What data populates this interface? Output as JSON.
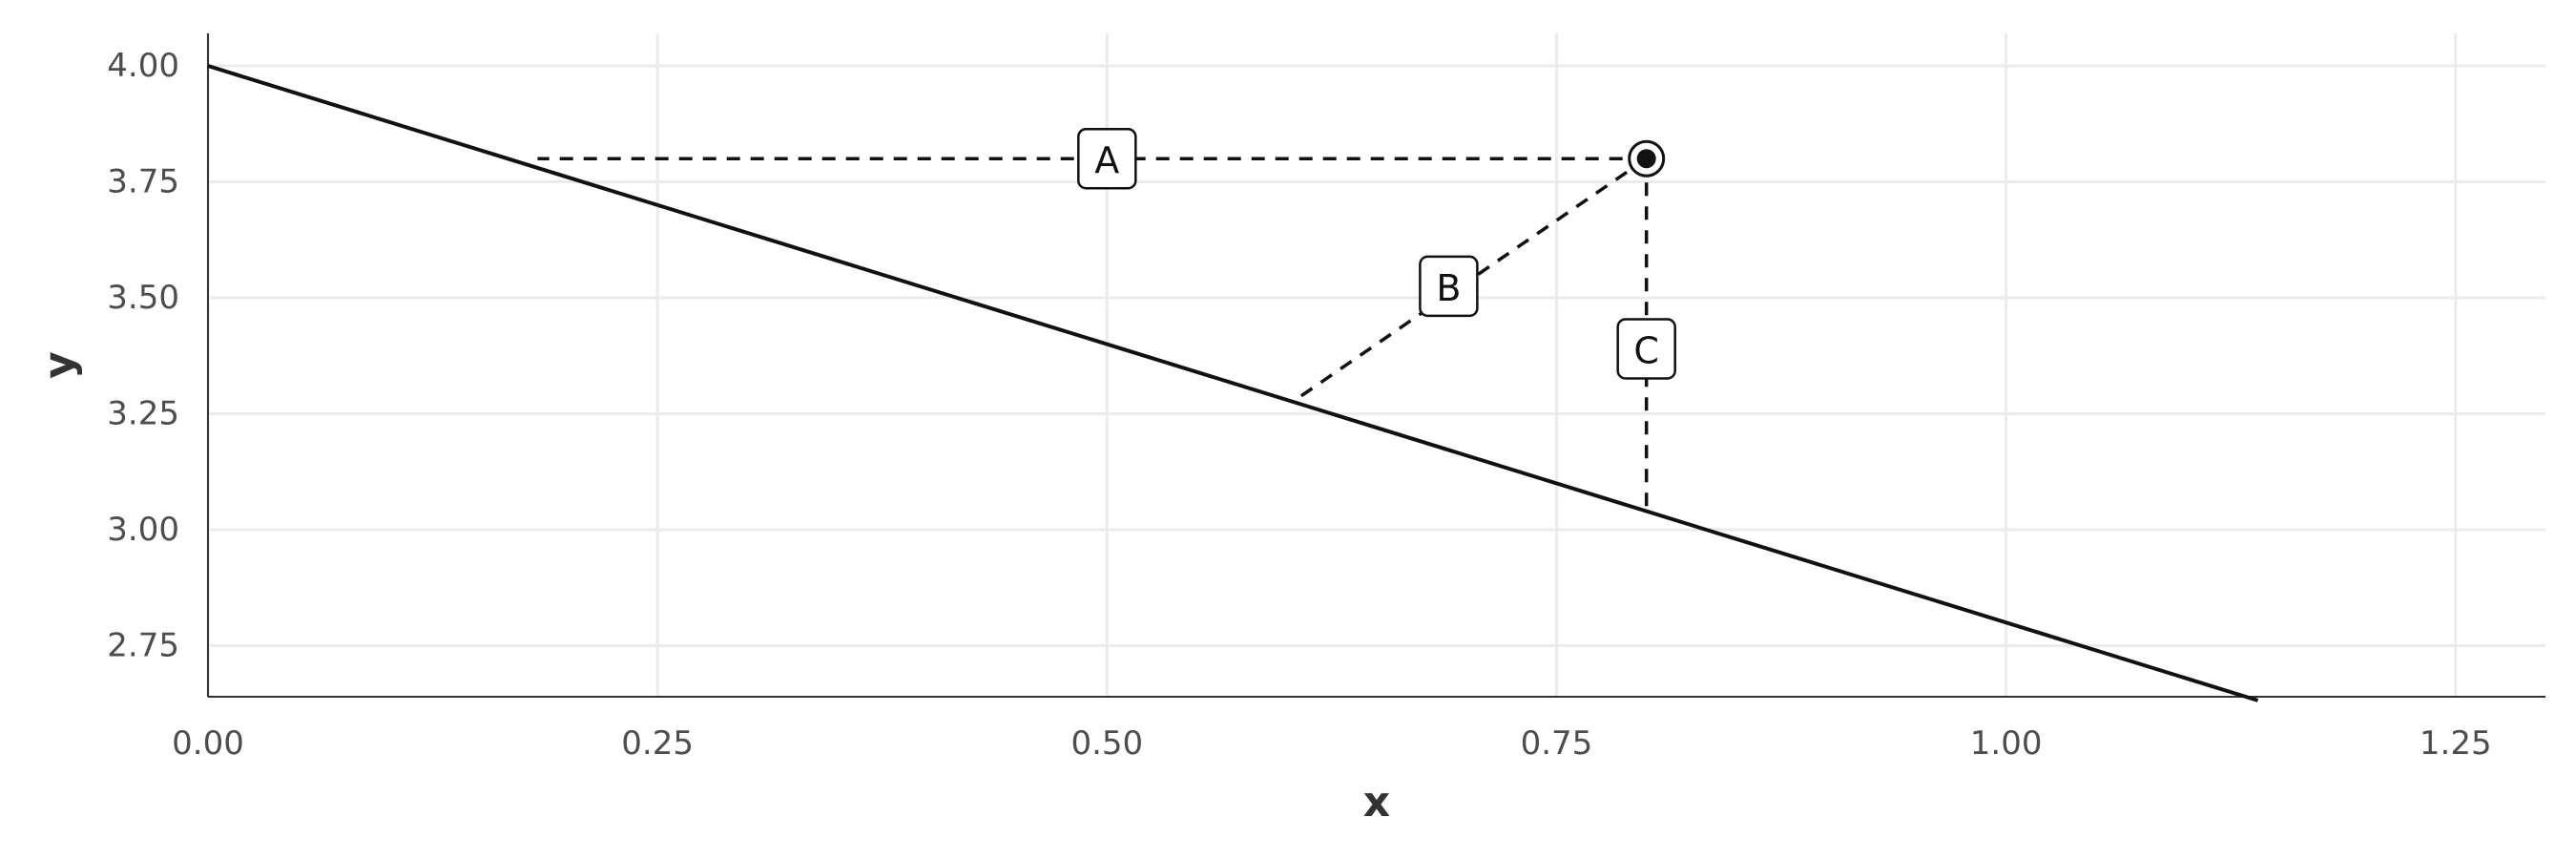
{
  "chart_data": {
    "type": "line",
    "title": "",
    "xlabel": "x",
    "ylabel": "y",
    "xlim": [
      0,
      1.3
    ],
    "ylim": [
      2.64,
      4.07
    ],
    "x_ticks": [
      0.0,
      0.25,
      0.5,
      0.75,
      1.0,
      1.25
    ],
    "x_tick_labels": [
      "0.00",
      "0.25",
      "0.50",
      "0.75",
      "1.00",
      "1.25"
    ],
    "y_ticks": [
      2.75,
      3.0,
      3.25,
      3.5,
      3.75,
      4.0
    ],
    "y_tick_labels": [
      "2.75",
      "3.00",
      "3.25",
      "3.50",
      "3.75",
      "4.00"
    ],
    "grid": true,
    "line": {
      "intercept": 4.0,
      "slope": -1.2,
      "x_start": 0.0,
      "x_end": 1.14
    },
    "point": {
      "x": 0.8,
      "y": 3.8
    },
    "segments": [
      {
        "label": "A",
        "from": [
          0.8,
          3.8
        ],
        "to": [
          0.1833,
          3.8
        ]
      },
      {
        "label": "B",
        "from": [
          0.8,
          3.8
        ],
        "to": [
          0.6033,
          3.276
        ]
      },
      {
        "label": "C",
        "from": [
          0.8,
          3.8
        ],
        "to": [
          0.8,
          3.04
        ]
      }
    ],
    "label_positions": [
      {
        "label": "A",
        "x": 0.5,
        "y": 3.8
      },
      {
        "label": "B",
        "x": 0.69,
        "y": 3.525
      },
      {
        "label": "C",
        "x": 0.8,
        "y": 3.39
      }
    ]
  }
}
